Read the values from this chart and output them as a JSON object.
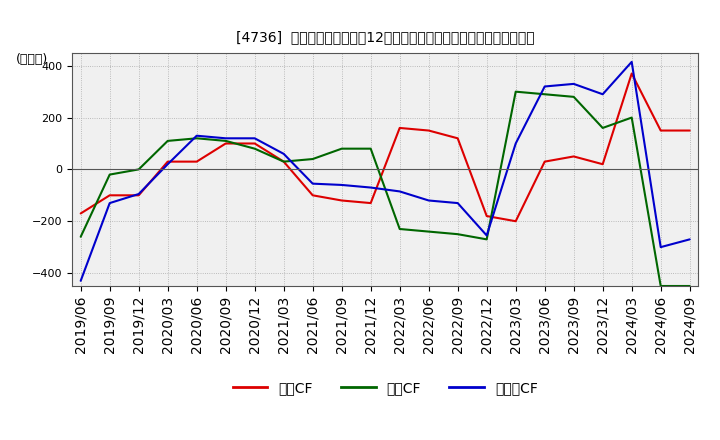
{
  "title": "[4736]  キャッシュフローの12か月移動合計の対前年同期増減額の推移",
  "ylabel": "(百万円)",
  "ylim": [
    -450,
    450
  ],
  "yticks": [
    -400,
    -200,
    0,
    200,
    400
  ],
  "legend_labels": [
    "営業CF",
    "投資CF",
    "フリーCF"
  ],
  "line_colors": [
    "#dd0000",
    "#006600",
    "#0000cc"
  ],
  "dates": [
    "2019/06",
    "2019/09",
    "2019/12",
    "2020/03",
    "2020/06",
    "2020/09",
    "2020/12",
    "2021/03",
    "2021/06",
    "2021/09",
    "2021/12",
    "2022/03",
    "2022/06",
    "2022/09",
    "2022/12",
    "2023/03",
    "2023/06",
    "2023/09",
    "2023/12",
    "2024/03",
    "2024/06",
    "2024/09"
  ],
  "operating_cf": [
    -170,
    -100,
    -100,
    30,
    30,
    100,
    100,
    30,
    -100,
    -120,
    -130,
    160,
    150,
    120,
    -180,
    -200,
    30,
    50,
    20,
    370,
    150,
    150
  ],
  "investing_cf": [
    -260,
    -20,
    0,
    110,
    120,
    110,
    80,
    30,
    40,
    80,
    80,
    -230,
    -240,
    -250,
    -270,
    300,
    290,
    280,
    160,
    200,
    -450,
    -450
  ],
  "free_cf": [
    -430,
    -130,
    -95,
    20,
    130,
    120,
    120,
    60,
    -55,
    -60,
    -70,
    -85,
    -120,
    -130,
    -255,
    100,
    320,
    330,
    290,
    415,
    -300,
    -270
  ],
  "background_color": "#ffffff",
  "grid_color": "#aaaaaa",
  "plot_bg_color": "#f0f0f0",
  "title_fontsize": 11,
  "axis_fontsize": 9,
  "tick_fontsize": 8
}
